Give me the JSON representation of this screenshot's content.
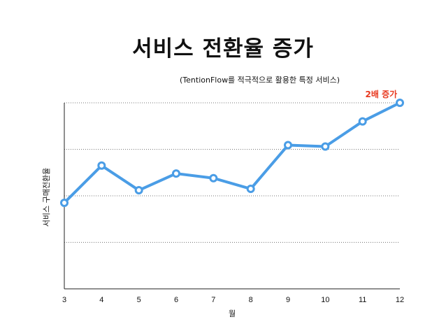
{
  "chart_data": {
    "type": "line",
    "title": "서비스 전환율 증가",
    "subtitle": "(TentionFlow를 적극적으로 활용한 특정 서비스)",
    "xlabel": "월",
    "ylabel": "서비스 구매전환율",
    "x": [
      3,
      4,
      5,
      6,
      7,
      8,
      9,
      10,
      11,
      12
    ],
    "series": [
      {
        "values": [
          1.85,
          2.65,
          2.12,
          2.48,
          2.38,
          2.15,
          3.09,
          3.06,
          3.6,
          4.0
        ]
      }
    ],
    "xlim": [
      3,
      12
    ],
    "ylim": [
      0,
      4.0
    ],
    "annotation": {
      "text": "2배 증가",
      "x": 11.5,
      "y": 4.0
    },
    "grid": "horizontal-dotted",
    "line_color": "#4a9de6"
  }
}
